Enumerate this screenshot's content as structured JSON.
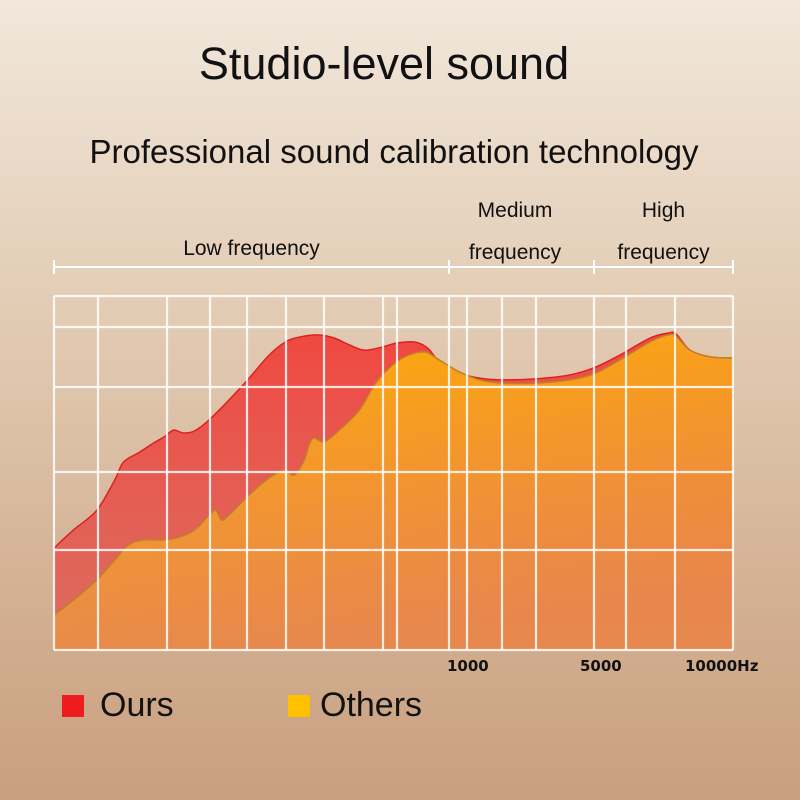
{
  "title": "Studio-level sound",
  "subtitle": "Professional sound calibration technology",
  "bands": [
    {
      "lines": [
        "Low frequency"
      ]
    },
    {
      "lines": [
        "Medium",
        "frequency"
      ]
    },
    {
      "lines": [
        "High",
        "frequency"
      ]
    }
  ],
  "chart_data": {
    "type": "area",
    "xscale": "log",
    "xunit": "Hz",
    "xlim": [
      41,
      10000
    ],
    "ylim": [
      0,
      100
    ],
    "grid": true,
    "legend_placement": "bottom-left",
    "x_tick_labels": [
      "1000",
      "5000",
      "10000Hz"
    ],
    "series": [
      {
        "name": "Ours",
        "color": "#e8322b",
        "points": [
          [
            41,
            28.8
          ],
          [
            48,
            33.9
          ],
          [
            58,
            39.5
          ],
          [
            67,
            48.0
          ],
          [
            72,
            53.1
          ],
          [
            82,
            55.9
          ],
          [
            92,
            58.5
          ],
          [
            100,
            60.2
          ],
          [
            108,
            62.1
          ],
          [
            117,
            61.3
          ],
          [
            128,
            61.9
          ],
          [
            144,
            65.0
          ],
          [
            169,
            70.6
          ],
          [
            199,
            76.8
          ],
          [
            234,
            83.3
          ],
          [
            267,
            87.0
          ],
          [
            299,
            88.4
          ],
          [
            351,
            89.0
          ],
          [
            397,
            88.1
          ],
          [
            448,
            86.2
          ],
          [
            506,
            84.7
          ],
          [
            586,
            85.6
          ],
          [
            656,
            86.7
          ],
          [
            759,
            87.0
          ],
          [
            844,
            85.3
          ],
          [
            929,
            81.4
          ],
          [
            1094,
            78.2
          ],
          [
            1286,
            76.8
          ],
          [
            1537,
            76.3
          ],
          [
            2024,
            76.6
          ],
          [
            2667,
            77.7
          ],
          [
            3243,
            79.7
          ],
          [
            4000,
            83.3
          ],
          [
            5102,
            88.1
          ],
          [
            5902,
            89.5
          ],
          [
            6300,
            89.3
          ],
          [
            7060,
            84.7
          ],
          [
            8300,
            82.8
          ],
          [
            10000,
            82.5
          ]
        ]
      },
      {
        "name": "Others",
        "color": "#ffb400",
        "points": [
          [
            41,
            9.9
          ],
          [
            48,
            14.1
          ],
          [
            58,
            19.8
          ],
          [
            67,
            25.4
          ],
          [
            75,
            29.7
          ],
          [
            85,
            31.1
          ],
          [
            100,
            31.1
          ],
          [
            113,
            31.9
          ],
          [
            128,
            33.9
          ],
          [
            144,
            38.1
          ],
          [
            152,
            39.5
          ],
          [
            159,
            36.7
          ],
          [
            169,
            38.1
          ],
          [
            199,
            43.8
          ],
          [
            234,
            48.6
          ],
          [
            265,
            50.8
          ],
          [
            287,
            49.4
          ],
          [
            311,
            53.7
          ],
          [
            324,
            58.2
          ],
          [
            337,
            59.9
          ],
          [
            366,
            58.8
          ],
          [
            413,
            62.1
          ],
          [
            486,
            67.8
          ],
          [
            549,
            74.9
          ],
          [
            620,
            79.7
          ],
          [
            700,
            82.8
          ],
          [
            823,
            84.2
          ],
          [
            929,
            81.9
          ],
          [
            1094,
            78.5
          ],
          [
            1286,
            76.3
          ],
          [
            1537,
            75.4
          ],
          [
            2024,
            75.4
          ],
          [
            2667,
            76.3
          ],
          [
            3243,
            78.0
          ],
          [
            4000,
            81.9
          ],
          [
            5102,
            87.0
          ],
          [
            5902,
            89.0
          ],
          [
            6300,
            88.7
          ],
          [
            7060,
            84.7
          ],
          [
            8300,
            82.8
          ],
          [
            10000,
            82.5
          ]
        ]
      }
    ]
  }
}
